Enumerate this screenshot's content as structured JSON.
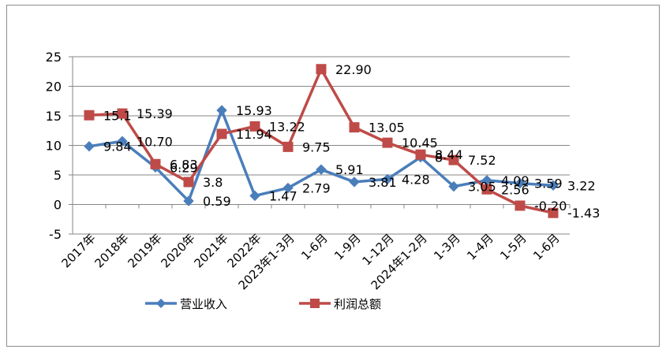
{
  "chart_data": {
    "type": "line",
    "title": "",
    "xlabel": "",
    "ylabel": "",
    "ylim": [
      -5,
      25
    ],
    "yticks": [
      -5,
      0,
      5,
      10,
      15,
      20,
      25
    ],
    "grid": true,
    "legend_position": "bottom",
    "categories": [
      "2017年",
      "2018年",
      "2019年",
      "2020年",
      "2021年",
      "2022年",
      "2023年1-3月",
      "1-6月",
      "1-9月",
      "1-12月",
      "2024年1-2月",
      "1-3月",
      "1-4月",
      "1-5月",
      "1-6月"
    ],
    "series": [
      {
        "name": "营业收入",
        "color": "#4a7ebb",
        "marker": "diamond",
        "values": [
          9.84,
          10.7,
          6.29,
          0.59,
          15.93,
          1.47,
          2.79,
          5.91,
          3.81,
          4.28,
          8.0,
          3.05,
          4.09,
          3.59,
          3.22
        ],
        "labels": [
          "9.84",
          "10.70",
          "6.29",
          "0.59",
          "15.93",
          "1.47",
          "2.79",
          "5.91",
          "3.81",
          "4.28",
          "8",
          "3.05",
          "4.09",
          "3.59",
          "3.22"
        ]
      },
      {
        "name": "利润总额",
        "color": "#be4b48",
        "marker": "square",
        "values": [
          15.1,
          15.39,
          6.83,
          3.8,
          11.94,
          13.22,
          9.75,
          22.9,
          13.05,
          10.45,
          8.44,
          7.52,
          2.56,
          -0.2,
          -1.43
        ],
        "labels": [
          "15.1",
          "15.39",
          "6.83",
          "3.8",
          "11.94",
          "13.22",
          "9.75",
          "22.90",
          "13.05",
          "10.45",
          "8.44",
          "7.52",
          "2.56",
          "-0.20",
          "-1.43"
        ]
      }
    ]
  }
}
